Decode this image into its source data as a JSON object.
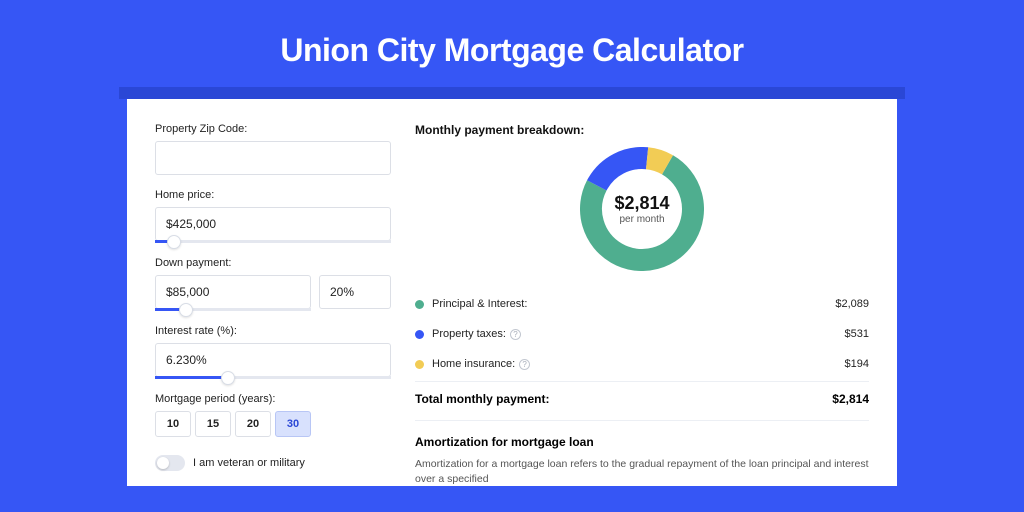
{
  "page": {
    "title": "Union City Mortgage Calculator",
    "bg_color": "#3656f5",
    "banner_color": "#2a47d6",
    "card_bg": "#ffffff"
  },
  "form": {
    "zip_label": "Property Zip Code:",
    "zip_value": "",
    "home_price_label": "Home price:",
    "home_price_value": "$425,000",
    "home_slider_pct": 8,
    "down_label": "Down payment:",
    "down_value": "$85,000",
    "down_pct_value": "20%",
    "down_slider_pct": 20,
    "rate_label": "Interest rate (%):",
    "rate_value": "6.230%",
    "rate_slider_pct": 31,
    "period_label": "Mortgage period (years):",
    "periods": [
      "10",
      "15",
      "20",
      "30"
    ],
    "period_active_index": 3,
    "veteran_label": "I am veteran or military"
  },
  "breakdown": {
    "title": "Monthly payment breakdown:",
    "center_value": "$2,814",
    "center_sub": "per month",
    "donut": {
      "size": 124,
      "thickness": 22,
      "slices": [
        {
          "label": "Principal & Interest:",
          "value": "$2,089",
          "pct": 74.2,
          "color": "#4fae8f"
        },
        {
          "label": "Property taxes:",
          "value": "$531",
          "pct": 18.9,
          "color": "#3656f5",
          "help": true
        },
        {
          "label": "Home insurance:",
          "value": "$194",
          "pct": 6.9,
          "color": "#f2cc55",
          "help": true
        }
      ]
    },
    "total_label": "Total monthly payment:",
    "total_value": "$2,814"
  },
  "amort": {
    "title": "Amortization for mortgage loan",
    "text": "Amortization for a mortgage loan refers to the gradual repayment of the loan principal and interest over a specified"
  }
}
